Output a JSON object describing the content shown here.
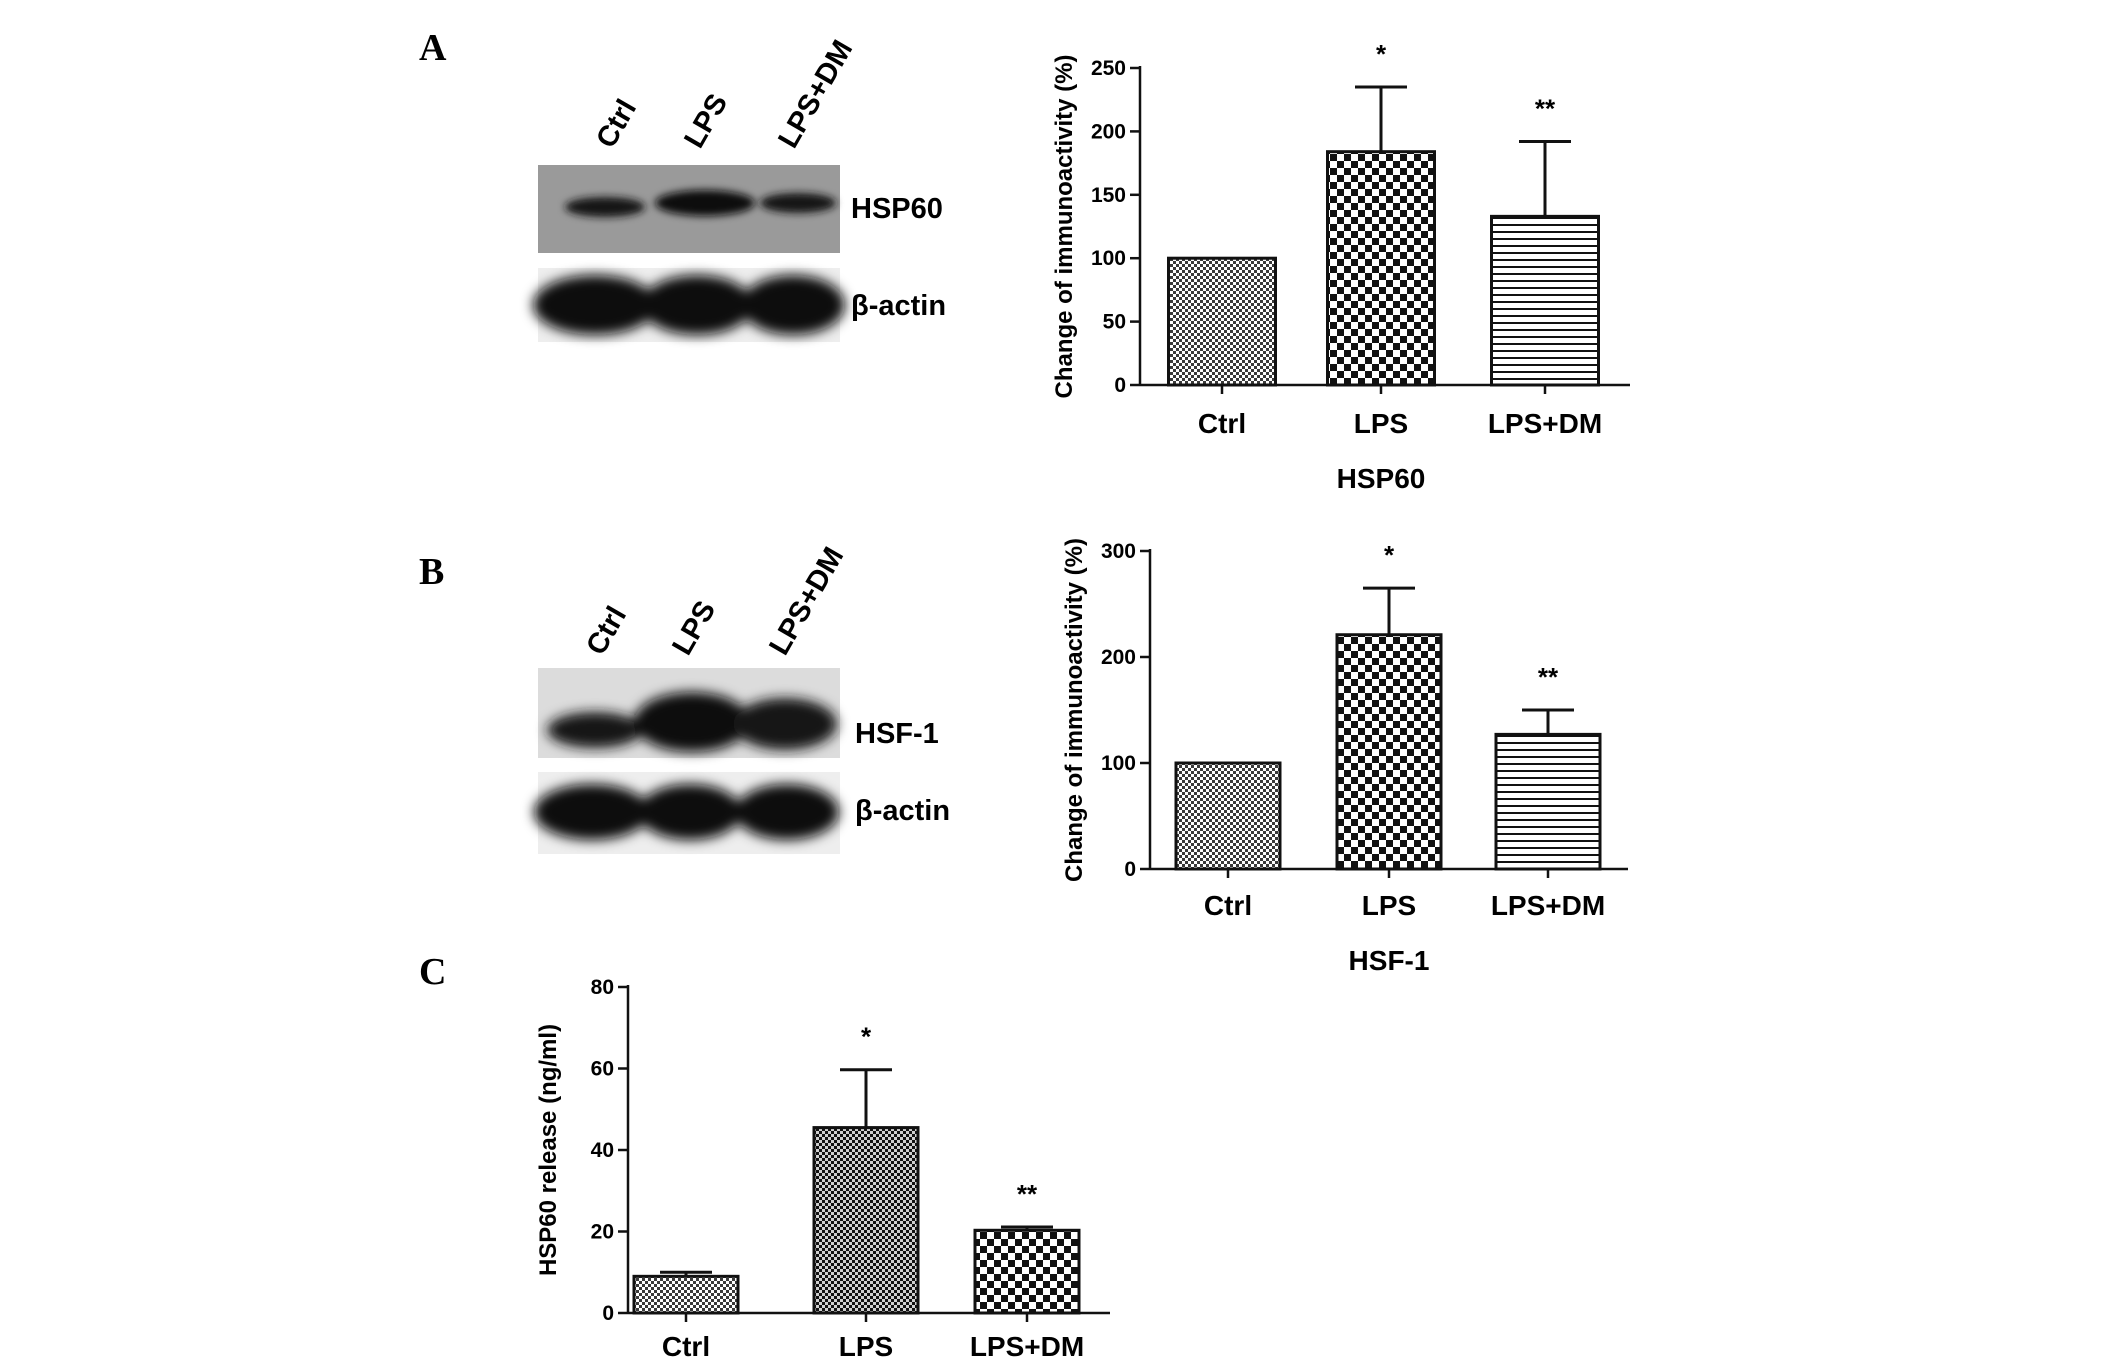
{
  "panels": {
    "a": {
      "label": "A",
      "blot": {
        "lanes": [
          "Ctrl",
          "LPS",
          "LPS+DM"
        ],
        "bands": [
          "HSP60",
          "β-actin"
        ]
      }
    },
    "b": {
      "label": "B",
      "blot": {
        "lanes": [
          "Ctrl",
          "LPS",
          "LPS+DM"
        ],
        "bands": [
          "HSF-1",
          "β-actin"
        ]
      }
    },
    "c": {
      "label": "C"
    }
  },
  "chart_data": [
    {
      "panel": "A",
      "type": "bar",
      "categories": [
        "Ctrl",
        "LPS",
        "LPS+DM"
      ],
      "values": [
        100,
        184,
        133
      ],
      "errors": [
        0,
        51,
        59
      ],
      "significance": [
        "",
        "*",
        "**"
      ],
      "patterns": [
        "fine-check",
        "coarse-check",
        "horizontal-lines"
      ],
      "xlabel": "HSP60",
      "ylabel": "Change of immunoactivity (%)",
      "ylim": [
        0,
        250
      ],
      "yticks": [
        0,
        50,
        100,
        150,
        200,
        250
      ],
      "grid": false
    },
    {
      "panel": "B",
      "type": "bar",
      "categories": [
        "Ctrl",
        "LPS",
        "LPS+DM"
      ],
      "values": [
        100,
        221,
        127
      ],
      "errors": [
        0,
        44,
        23
      ],
      "significance": [
        "",
        "*",
        "**"
      ],
      "patterns": [
        "fine-check",
        "coarse-check",
        "horizontal-lines"
      ],
      "xlabel": "HSF-1",
      "ylabel": "Change of immunoactivity (%)",
      "ylim": [
        0,
        300
      ],
      "yticks": [
        0,
        100,
        200,
        300
      ],
      "grid": false
    },
    {
      "panel": "C",
      "type": "bar",
      "categories": [
        "Ctrl",
        "LPS",
        "LPS+DM"
      ],
      "values": [
        9,
        45.5,
        20.3
      ],
      "errors": [
        1,
        14.2,
        0.8
      ],
      "significance": [
        "",
        "*",
        "**"
      ],
      "patterns": [
        "fine-check",
        "fine-check-dark",
        "coarse-check"
      ],
      "xlabel": "",
      "ylabel": "HSP60 release (ng/ml)",
      "ylim": [
        0,
        80
      ],
      "yticks": [
        0,
        20,
        40,
        60,
        80
      ],
      "grid": false
    }
  ]
}
